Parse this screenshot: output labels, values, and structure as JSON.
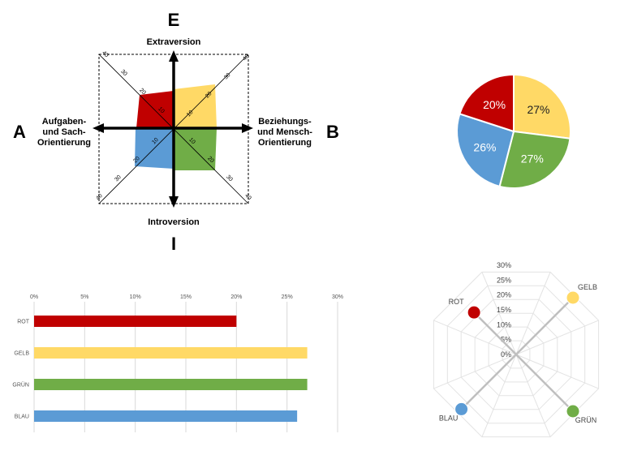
{
  "colors": {
    "rot": "#C00000",
    "gelb": "#FFD966",
    "gruen": "#70AD47",
    "blau": "#5B9BD5"
  },
  "quadrant": {
    "letters": {
      "top": "E",
      "left": "A",
      "right": "B",
      "bottom": "I"
    },
    "labels": {
      "top": "Extraversion",
      "bottom": "Introversion",
      "left": [
        "Aufgaben-",
        "und Sach-",
        "Orientierung"
      ],
      "right": [
        "Beziehungs-",
        "und Mensch-",
        "Orientierung"
      ]
    },
    "ticks": {
      "top_left": [
        "40",
        "30",
        "20",
        "10"
      ],
      "top_right": [
        "40",
        "30",
        "20",
        "10"
      ],
      "bottom_left": [
        "40",
        "30",
        "20",
        "10"
      ],
      "bottom_right": [
        "40",
        "30",
        "20",
        "10"
      ]
    }
  },
  "chart_data": [
    {
      "type": "pie",
      "slices": [
        {
          "label": "GELB",
          "value": 27,
          "display": "27%",
          "color": "#FFD966"
        },
        {
          "label": "GRÜN",
          "value": 27,
          "display": "27%",
          "color": "#70AD47"
        },
        {
          "label": "BLAU",
          "value": 26,
          "display": "26%",
          "color": "#5B9BD5"
        },
        {
          "label": "ROT",
          "value": 20,
          "display": "20%",
          "color": "#C00000"
        }
      ]
    },
    {
      "type": "bar",
      "orientation": "horizontal",
      "categories": [
        "ROT",
        "GELB",
        "GRÜN",
        "BLAU"
      ],
      "values": [
        20,
        27,
        27,
        26
      ],
      "colors": [
        "#C00000",
        "#FFD966",
        "#70AD47",
        "#5B9BD5"
      ],
      "xlim": [
        0,
        30
      ],
      "xticks": [
        "0%",
        "5%",
        "10%",
        "15%",
        "20%",
        "25%",
        "30%"
      ],
      "grid": true
    },
    {
      "type": "radar",
      "axes": [
        "GELB",
        "GRÜN",
        "BLAU",
        "ROT"
      ],
      "values": [
        27,
        27,
        26,
        20
      ],
      "colors": [
        "#FFD966",
        "#70AD47",
        "#5B9BD5",
        "#C00000"
      ],
      "rlim": [
        0,
        30
      ],
      "rticks": [
        "0%",
        "5%",
        "10%",
        "15%",
        "20%",
        "25%",
        "30%"
      ]
    }
  ]
}
